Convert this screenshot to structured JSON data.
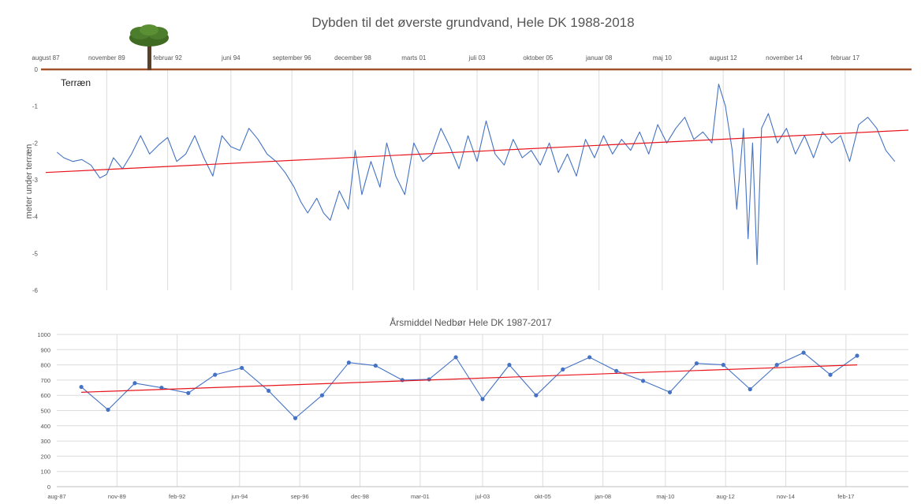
{
  "chart_data": [
    {
      "type": "line",
      "title": "Dybden til det øverste grundvand, Hele DK 1988-2018",
      "ylabel": "meter under terræn",
      "annotation": "Terræn",
      "icon": "tree-icon",
      "ylim": [
        -6,
        0
      ],
      "yticks": [
        0,
        -1,
        -2,
        -3,
        -4,
        -5,
        -6
      ],
      "xlim": [
        "1987-08",
        "2019-06"
      ],
      "x_ticks": [
        {
          "label": "august 87",
          "date": "1987-08"
        },
        {
          "label": "november 89",
          "date": "1989-11"
        },
        {
          "label": "februar 92",
          "date": "1992-02"
        },
        {
          "label": "juni 94",
          "date": "1994-06"
        },
        {
          "label": "september 96",
          "date": "1996-09"
        },
        {
          "label": "december 98",
          "date": "1998-12"
        },
        {
          "label": "marts 01",
          "date": "2001-03"
        },
        {
          "label": "juli 03",
          "date": "2003-07"
        },
        {
          "label": "oktober 05",
          "date": "2005-10"
        },
        {
          "label": "januar 08",
          "date": "2008-01"
        },
        {
          "label": "maj 10",
          "date": "2010-05"
        },
        {
          "label": "august 12",
          "date": "2012-08"
        },
        {
          "label": "november 14",
          "date": "2014-11"
        },
        {
          "label": "februar 17",
          "date": "2017-02"
        }
      ],
      "series": [
        {
          "color": "#4472c4",
          "points": [
            [
              "1988-01",
              -2.25
            ],
            [
              "1988-04",
              -2.4
            ],
            [
              "1988-08",
              -2.5
            ],
            [
              "1988-12",
              -2.45
            ],
            [
              "1989-04",
              -2.6
            ],
            [
              "1989-08",
              -2.95
            ],
            [
              "1989-11",
              -2.85
            ],
            [
              "1990-02",
              -2.4
            ],
            [
              "1990-06",
              -2.7
            ],
            [
              "1990-10",
              -2.3
            ],
            [
              "1991-02",
              -1.8
            ],
            [
              "1991-06",
              -2.3
            ],
            [
              "1991-10",
              -2.05
            ],
            [
              "1992-02",
              -1.85
            ],
            [
              "1992-06",
              -2.5
            ],
            [
              "1992-10",
              -2.3
            ],
            [
              "1993-02",
              -1.8
            ],
            [
              "1993-06",
              -2.4
            ],
            [
              "1993-10",
              -2.9
            ],
            [
              "1994-02",
              -1.8
            ],
            [
              "1994-06",
              -2.1
            ],
            [
              "1994-10",
              -2.2
            ],
            [
              "1995-02",
              -1.6
            ],
            [
              "1995-06",
              -1.9
            ],
            [
              "1995-10",
              -2.3
            ],
            [
              "1996-02",
              -2.5
            ],
            [
              "1996-06",
              -2.8
            ],
            [
              "1996-10",
              -3.2
            ],
            [
              "1997-01",
              -3.6
            ],
            [
              "1997-04",
              -3.9
            ],
            [
              "1997-08",
              -3.5
            ],
            [
              "1997-11",
              -3.9
            ],
            [
              "1998-02",
              -4.1
            ],
            [
              "1998-06",
              -3.3
            ],
            [
              "1998-10",
              -3.8
            ],
            [
              "1999-01",
              -2.2
            ],
            [
              "1999-04",
              -3.4
            ],
            [
              "1999-08",
              -2.5
            ],
            [
              "1999-12",
              -3.2
            ],
            [
              "2000-03",
              -2.0
            ],
            [
              "2000-07",
              -2.9
            ],
            [
              "2000-11",
              -3.4
            ],
            [
              "2001-03",
              -2.0
            ],
            [
              "2001-07",
              -2.5
            ],
            [
              "2001-11",
              -2.3
            ],
            [
              "2002-03",
              -1.6
            ],
            [
              "2002-07",
              -2.1
            ],
            [
              "2002-11",
              -2.7
            ],
            [
              "2003-03",
              -1.8
            ],
            [
              "2003-07",
              -2.5
            ],
            [
              "2003-11",
              -1.4
            ],
            [
              "2004-03",
              -2.3
            ],
            [
              "2004-07",
              -2.6
            ],
            [
              "2004-11",
              -1.9
            ],
            [
              "2005-03",
              -2.4
            ],
            [
              "2005-07",
              -2.2
            ],
            [
              "2005-11",
              -2.6
            ],
            [
              "2006-03",
              -2.0
            ],
            [
              "2006-07",
              -2.8
            ],
            [
              "2006-11",
              -2.3
            ],
            [
              "2007-03",
              -2.9
            ],
            [
              "2007-07",
              -1.9
            ],
            [
              "2007-11",
              -2.4
            ],
            [
              "2008-03",
              -1.8
            ],
            [
              "2008-07",
              -2.3
            ],
            [
              "2008-11",
              -1.9
            ],
            [
              "2009-03",
              -2.2
            ],
            [
              "2009-07",
              -1.7
            ],
            [
              "2009-11",
              -2.3
            ],
            [
              "2010-03",
              -1.5
            ],
            [
              "2010-07",
              -2.0
            ],
            [
              "2010-11",
              -1.6
            ],
            [
              "2011-03",
              -1.3
            ],
            [
              "2011-07",
              -1.9
            ],
            [
              "2011-11",
              -1.7
            ],
            [
              "2012-03",
              -2.0
            ],
            [
              "2012-06",
              -0.4
            ],
            [
              "2012-09",
              -1.0
            ],
            [
              "2012-12",
              -2.2
            ],
            [
              "2013-02",
              -3.8
            ],
            [
              "2013-05",
              -1.6
            ],
            [
              "2013-07",
              -4.6
            ],
            [
              "2013-09",
              -2.0
            ],
            [
              "2013-11",
              -5.3
            ],
            [
              "2014-01",
              -1.6
            ],
            [
              "2014-04",
              -1.2
            ],
            [
              "2014-08",
              -2.0
            ],
            [
              "2014-12",
              -1.6
            ],
            [
              "2015-04",
              -2.3
            ],
            [
              "2015-08",
              -1.8
            ],
            [
              "2015-12",
              -2.4
            ],
            [
              "2016-04",
              -1.7
            ],
            [
              "2016-08",
              -2.0
            ],
            [
              "2016-12",
              -1.8
            ],
            [
              "2017-04",
              -2.5
            ],
            [
              "2017-08",
              -1.5
            ],
            [
              "2017-12",
              -1.3
            ],
            [
              "2018-04",
              -1.6
            ],
            [
              "2018-08",
              -2.2
            ],
            [
              "2018-12",
              -2.5
            ]
          ]
        }
      ],
      "trend": {
        "color": "#e8141b",
        "start": [
          "1987-08",
          -2.8
        ],
        "end": [
          "2019-06",
          -1.65
        ]
      }
    },
    {
      "type": "line",
      "title": "Årsmiddel Nedbør Hele DK 1987-2017",
      "ylim": [
        0,
        1000
      ],
      "yticks": [
        0,
        100,
        200,
        300,
        400,
        500,
        600,
        700,
        800,
        900,
        1000
      ],
      "xlim": [
        "1987-08",
        "2019-06"
      ],
      "x_ticks": [
        {
          "label": "aug-87",
          "date": "1987-08"
        },
        {
          "label": "nov-89",
          "date": "1989-11"
        },
        {
          "label": "feb-92",
          "date": "1992-02"
        },
        {
          "label": "jun-94",
          "date": "1994-06"
        },
        {
          "label": "sep-96",
          "date": "1996-09"
        },
        {
          "label": "dec-98",
          "date": "1998-12"
        },
        {
          "label": "mar-01",
          "date": "2001-03"
        },
        {
          "label": "jul-03",
          "date": "2003-07"
        },
        {
          "label": "okt-05",
          "date": "2005-10"
        },
        {
          "label": "jan-08",
          "date": "2008-01"
        },
        {
          "label": "maj-10",
          "date": "2010-05"
        },
        {
          "label": "aug-12",
          "date": "2012-08"
        },
        {
          "label": "nov-14",
          "date": "2014-11"
        },
        {
          "label": "feb-17",
          "date": "2017-02"
        }
      ],
      "series": [
        {
          "color": "#4472c4",
          "points": [
            [
              "1988-07",
              655
            ],
            [
              "1989-07",
              505
            ],
            [
              "1990-07",
              680
            ],
            [
              "1991-07",
              650
            ],
            [
              "1992-07",
              615
            ],
            [
              "1993-07",
              735
            ],
            [
              "1994-07",
              780
            ],
            [
              "1995-07",
              630
            ],
            [
              "1996-07",
              450
            ],
            [
              "1997-07",
              600
            ],
            [
              "1998-07",
              815
            ],
            [
              "1999-07",
              795
            ],
            [
              "2000-07",
              700
            ],
            [
              "2001-07",
              705
            ],
            [
              "2002-07",
              850
            ],
            [
              "2003-07",
              575
            ],
            [
              "2004-07",
              800
            ],
            [
              "2005-07",
              600
            ],
            [
              "2006-07",
              770
            ],
            [
              "2007-07",
              850
            ],
            [
              "2008-07",
              760
            ],
            [
              "2009-07",
              695
            ],
            [
              "2010-07",
              620
            ],
            [
              "2011-07",
              810
            ],
            [
              "2012-07",
              800
            ],
            [
              "2013-07",
              640
            ],
            [
              "2014-07",
              800
            ],
            [
              "2015-07",
              880
            ],
            [
              "2016-07",
              735
            ],
            [
              "2017-07",
              860
            ]
          ]
        }
      ],
      "trend": {
        "color": "#e8141b",
        "start": [
          "1988-07",
          620
        ],
        "end": [
          "2017-07",
          800
        ]
      }
    }
  ]
}
